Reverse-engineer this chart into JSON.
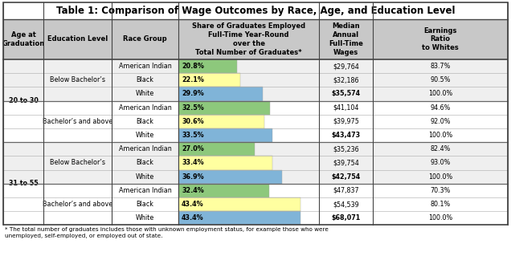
{
  "title": "Table 1: Comparison of Wage Outcomes by Race, Age, and Education Level",
  "rows": [
    {
      "age": "20 to 30",
      "edu": "Below Bachelor’s",
      "race": "American Indian",
      "pct": 20.8,
      "wage": "$29,764",
      "ratio": "83.7%",
      "bar_color": "#8dc87c",
      "wage_bold": false
    },
    {
      "age": "20 to 30",
      "edu": "Below Bachelor’s",
      "race": "Black",
      "pct": 22.1,
      "wage": "$32,186",
      "ratio": "90.5%",
      "bar_color": "#ffffa0",
      "wage_bold": false
    },
    {
      "age": "20 to 30",
      "edu": "Below Bachelor’s",
      "race": "White",
      "pct": 29.9,
      "wage": "$35,574",
      "ratio": "100.0%",
      "bar_color": "#80b4d8",
      "wage_bold": true
    },
    {
      "age": "20 to 30",
      "edu": "Bachelor’s and above",
      "race": "American Indian",
      "pct": 32.5,
      "wage": "$41,104",
      "ratio": "94.6%",
      "bar_color": "#8dc87c",
      "wage_bold": false
    },
    {
      "age": "20 to 30",
      "edu": "Bachelor’s and above",
      "race": "Black",
      "pct": 30.6,
      "wage": "$39,975",
      "ratio": "92.0%",
      "bar_color": "#ffffa0",
      "wage_bold": false
    },
    {
      "age": "20 to 30",
      "edu": "Bachelor’s and above",
      "race": "White",
      "pct": 33.5,
      "wage": "$43,473",
      "ratio": "100.0%",
      "bar_color": "#80b4d8",
      "wage_bold": true
    },
    {
      "age": "31 to 55",
      "edu": "Below Bachelor’s",
      "race": "American Indian",
      "pct": 27.0,
      "wage": "$35,236",
      "ratio": "82.4%",
      "bar_color": "#8dc87c",
      "wage_bold": false
    },
    {
      "age": "31 to 55",
      "edu": "Below Bachelor’s",
      "race": "Black",
      "pct": 33.4,
      "wage": "$39,754",
      "ratio": "93.0%",
      "bar_color": "#ffffa0",
      "wage_bold": false
    },
    {
      "age": "31 to 55",
      "edu": "Below Bachelor’s",
      "race": "White",
      "pct": 36.9,
      "wage": "$42,754",
      "ratio": "100.0%",
      "bar_color": "#80b4d8",
      "wage_bold": true
    },
    {
      "age": "31 to 55",
      "edu": "Bachelor’s and above",
      "race": "American Indian",
      "pct": 32.4,
      "wage": "$47,837",
      "ratio": "70.3%",
      "bar_color": "#8dc87c",
      "wage_bold": false
    },
    {
      "age": "31 to 55",
      "edu": "Bachelor’s and above",
      "race": "Black",
      "pct": 43.4,
      "wage": "$54,539",
      "ratio": "80.1%",
      "bar_color": "#ffffa0",
      "wage_bold": false
    },
    {
      "age": "31 to 55",
      "edu": "Bachelor’s and above",
      "race": "White",
      "pct": 43.4,
      "wage": "$68,071",
      "ratio": "100.0%",
      "bar_color": "#80b4d8",
      "wage_bold": true
    }
  ],
  "footnote": "* The total number of graduates includes those with unknown employment status, for example those who were\nunemployed, self-employed, or employed out of state.",
  "bar_max": 50.0,
  "header_bg": "#c8c8c8",
  "border_color": "#444444",
  "thin_line_color": "#aaaaaa",
  "thick_line_color": "#666666",
  "title_fontsize": 8.5,
  "header_fontsize": 6.0,
  "cell_fontsize": 5.8,
  "footnote_fontsize": 5.2,
  "age_sections": {
    "20 to 30": [
      0,
      5
    ],
    "31 to 55": [
      6,
      11
    ]
  },
  "edu_sections": [
    [
      0,
      2,
      "Below Bachelor’s"
    ],
    [
      3,
      5,
      "Bachelor’s and above"
    ],
    [
      6,
      8,
      "Below Bachelor’s"
    ],
    [
      9,
      11,
      "Bachelor’s and above"
    ]
  ]
}
